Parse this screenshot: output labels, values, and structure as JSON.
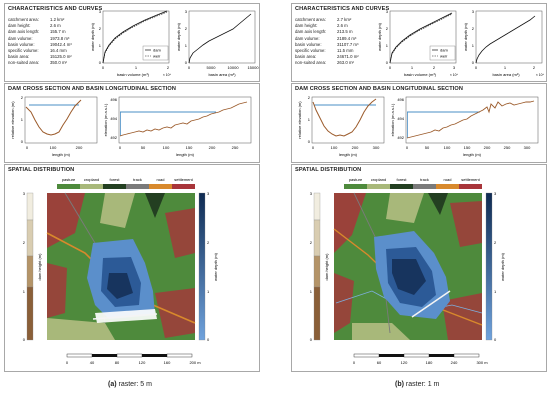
{
  "panels": [
    {
      "caption_label": "(a)",
      "caption_text": "raster: 5 m",
      "characteristics": {
        "title": "CHARACTERISTICS AND CURVES",
        "stats": [
          {
            "label": "catchment area:",
            "value": "1.2 km²"
          },
          {
            "label": "dam height:",
            "value": "2.6 m"
          },
          {
            "label": "dam axis length:",
            "value": "155.7 m"
          },
          {
            "label": "dam volume:",
            "value": "1973.8 m³"
          },
          {
            "label": "basin volume:",
            "value": "19042.4 m³"
          },
          {
            "label": "specific volume:",
            "value": "16.4 mm"
          },
          {
            "label": "basin area:",
            "value": "15125.0 m²"
          },
          {
            "label": "non-suited area:",
            "value": "350.0 m²"
          }
        ],
        "vol_chart": {
          "ylabel": "water depth (m)",
          "xlabel": "basin volume (m³)",
          "exp": "× 10⁴",
          "yticks": [
            "0",
            "1",
            "2",
            "3"
          ],
          "xticks": [
            "0",
            "1",
            "2"
          ],
          "legend": [
            "dam",
            "weir"
          ]
        },
        "area_chart": {
          "ylabel": "water depth (m)",
          "xlabel": "basin area (m²)",
          "yticks": [
            "0",
            "1",
            "2",
            "3"
          ],
          "xticks": [
            "0",
            "5000",
            "10000",
            "15000"
          ]
        }
      },
      "sections": {
        "title": "DAM CROSS SECTION AND BASIN LONGITUDINAL SECTION",
        "cross": {
          "ylabel": "relative elevation (m)",
          "xlabel": "length (m)",
          "yticks": [
            "0",
            "1",
            "2"
          ],
          "xticks": [
            "0",
            "100",
            "200"
          ]
        },
        "long": {
          "ylabel": "elevation (m a.s.l.)",
          "xlabel": "length (m)",
          "yticks": [
            "492",
            "494",
            "496"
          ],
          "xticks": [
            "0",
            "50",
            "100",
            "150",
            "200",
            "250"
          ]
        }
      },
      "spatial": {
        "title": "SPATIAL DISTRIBUTION",
        "landuse": [
          "pasture",
          "cropland",
          "forest",
          "track",
          "road",
          "settlement"
        ],
        "left_label": "dam height (m)",
        "right_label": "water depth (m)",
        "left_ticks": [
          "3",
          "2",
          "1",
          "0"
        ],
        "right_ticks": [
          "3",
          "2",
          "1",
          "0"
        ],
        "scale_ticks": [
          "0",
          "40",
          "80",
          "120",
          "160",
          "200 m"
        ]
      }
    },
    {
      "caption_label": "(b)",
      "caption_text": "raster: 1 m",
      "characteristics": {
        "title": "CHARACTERISTICS AND CURVES",
        "stats": [
          {
            "label": "catchment area:",
            "value": "2.7 km²"
          },
          {
            "label": "dam height:",
            "value": "2.6 m"
          },
          {
            "label": "dam axis length:",
            "value": "213.5 m"
          },
          {
            "label": "dam volume:",
            "value": "2189.4 m³"
          },
          {
            "label": "basin volume:",
            "value": "31107.7 m³"
          },
          {
            "label": "specific volume:",
            "value": "11.5 mm"
          },
          {
            "label": "basin area:",
            "value": "24671.0 m²"
          },
          {
            "label": "non-suited area:",
            "value": "263.0 m²"
          }
        ],
        "vol_chart": {
          "ylabel": "water depth (m)",
          "xlabel": "basin volume (m³)",
          "exp": "× 10⁴",
          "yticks": [
            "0",
            "1",
            "2",
            "3"
          ],
          "xticks": [
            "0",
            "1",
            "2",
            "3"
          ],
          "legend": [
            "dam",
            "weir"
          ]
        },
        "area_chart": {
          "ylabel": "water depth (m)",
          "xlabel": "basin area (m²)",
          "exp": "× 10⁴",
          "yticks": [
            "0",
            "1",
            "2",
            "3"
          ],
          "xticks": [
            "0",
            "1",
            "2"
          ]
        }
      },
      "sections": {
        "title": "DAM CROSS SECTION AND BASIN LONGITUDINAL SECTION",
        "cross": {
          "ylabel": "relative elevation (m)",
          "xlabel": "length (m)",
          "yticks": [
            "0",
            "1",
            "2"
          ],
          "xticks": [
            "0",
            "100",
            "200",
            "300"
          ]
        },
        "long": {
          "ylabel": "elevation (m a.s.l.)",
          "xlabel": "length (m)",
          "yticks": [
            "492",
            "494",
            "496"
          ],
          "xticks": [
            "0",
            "50",
            "100",
            "150",
            "200",
            "250",
            "300"
          ]
        }
      },
      "spatial": {
        "title": "SPATIAL DISTRIBUTION",
        "landuse": [
          "pasture",
          "cropland",
          "forest",
          "track",
          "road",
          "settlement"
        ],
        "left_label": "dam height (m)",
        "right_label": "water depth (m)",
        "left_ticks": [
          "3",
          "2",
          "1",
          "0"
        ],
        "right_ticks": [
          "3",
          "2",
          "1",
          "0"
        ],
        "scale_ticks": [
          "0",
          "60",
          "120",
          "180",
          "240",
          "300 m"
        ]
      }
    }
  ],
  "colors": {
    "pasture": "#4e8a3c",
    "cropland": "#a8b87a",
    "forest": "#233f21",
    "track": "#7a7a7a",
    "road": "#d8892c",
    "settlement": "#a8353a",
    "dam_line": "#9b5a2a",
    "water_line": "#4a8fc6",
    "water_light": "#5b8fcb",
    "water_dark": "#17345e"
  }
}
